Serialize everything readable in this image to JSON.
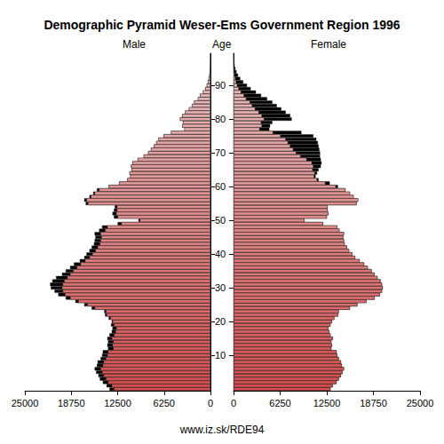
{
  "chart_data": {
    "type": "population_pyramid",
    "title": "Demographic Pyramid Weser-Ems Government Region 1996",
    "ylabel": "Age",
    "annotations": [
      "www.iz.sk/RDE94"
    ],
    "categories": [
      null,
      null,
      null,
      null,
      null,
      null,
      null,
      null,
      null,
      null,
      "10",
      null,
      null,
      null,
      null,
      null,
      null,
      null,
      null,
      null,
      "20",
      null,
      null,
      null,
      null,
      null,
      null,
      null,
      null,
      null,
      "30",
      null,
      null,
      null,
      null,
      null,
      null,
      null,
      null,
      null,
      "40",
      null,
      null,
      null,
      null,
      null,
      null,
      null,
      null,
      null,
      "50",
      null,
      null,
      null,
      null,
      null,
      null,
      null,
      null,
      null,
      "60",
      null,
      null,
      null,
      null,
      null,
      null,
      null,
      null,
      null,
      "70",
      null,
      null,
      null,
      null,
      null,
      null,
      null,
      null,
      null,
      "80",
      null,
      null,
      null,
      null,
      null,
      null,
      null,
      null,
      null,
      "90",
      null,
      null,
      null,
      null,
      null,
      null,
      null,
      null,
      null
    ],
    "series": [
      {
        "name": "Male",
        "values": [
          13600,
          14000,
          14500,
          14900,
          15100,
          15400,
          15600,
          15300,
          15200,
          14800,
          14600,
          14500,
          13800,
          13900,
          13800,
          13900,
          13600,
          13300,
          13200,
          13400,
          13300,
          13700,
          14200,
          14300,
          16000,
          17000,
          18200,
          19500,
          20500,
          21000,
          21500,
          21600,
          21300,
          20800,
          20000,
          19500,
          18900,
          18400,
          17600,
          17000,
          16700,
          16300,
          16000,
          15700,
          15600,
          15500,
          15600,
          15000,
          14600,
          12500,
          9700,
          13000,
          13200,
          13000,
          12900,
          16800,
          17000,
          16300,
          15800,
          15300,
          13700,
          12300,
          11200,
          10800,
          10900,
          10600,
          10700,
          10500,
          9800,
          9000,
          8400,
          8000,
          7600,
          7300,
          7000,
          6300,
          5300,
          3500,
          3800,
          3700,
          4100,
          3800,
          3400,
          2900,
          2500,
          2200,
          1700,
          1400,
          1000,
          700,
          500,
          350,
          250,
          150,
          100,
          60,
          40,
          25,
          15,
          10
        ]
      },
      {
        "name": "Female",
        "values": [
          13000,
          13300,
          13800,
          14100,
          14400,
          14600,
          14800,
          14500,
          14400,
          14100,
          13900,
          13800,
          13100,
          13200,
          13100,
          13300,
          13000,
          12800,
          12700,
          13000,
          13200,
          13500,
          14000,
          14100,
          15600,
          16600,
          17800,
          18900,
          19600,
          19900,
          20000,
          19900,
          19700,
          19300,
          18900,
          18500,
          18000,
          17500,
          16900,
          16300,
          15900,
          15500,
          15200,
          14900,
          14800,
          14700,
          14800,
          14200,
          13900,
          12000,
          9500,
          12500,
          12700,
          12600,
          12600,
          16500,
          16700,
          16100,
          15600,
          15000,
          14000,
          12900,
          11400,
          11000,
          11200,
          11400,
          11700,
          11800,
          11700,
          11600,
          11600,
          11500,
          11400,
          11300,
          11100,
          10700,
          9100,
          4800,
          4900,
          5200,
          7800,
          7600,
          7000,
          6400,
          5800,
          5200,
          4500,
          3700,
          3000,
          2300,
          1800,
          1300,
          900,
          600,
          400,
          250,
          150,
          100,
          60,
          40
        ]
      }
    ],
    "xlim": [
      0,
      25000
    ],
    "xticks": [
      0,
      6250,
      12500,
      18750,
      25000
    ],
    "grid": false
  }
}
